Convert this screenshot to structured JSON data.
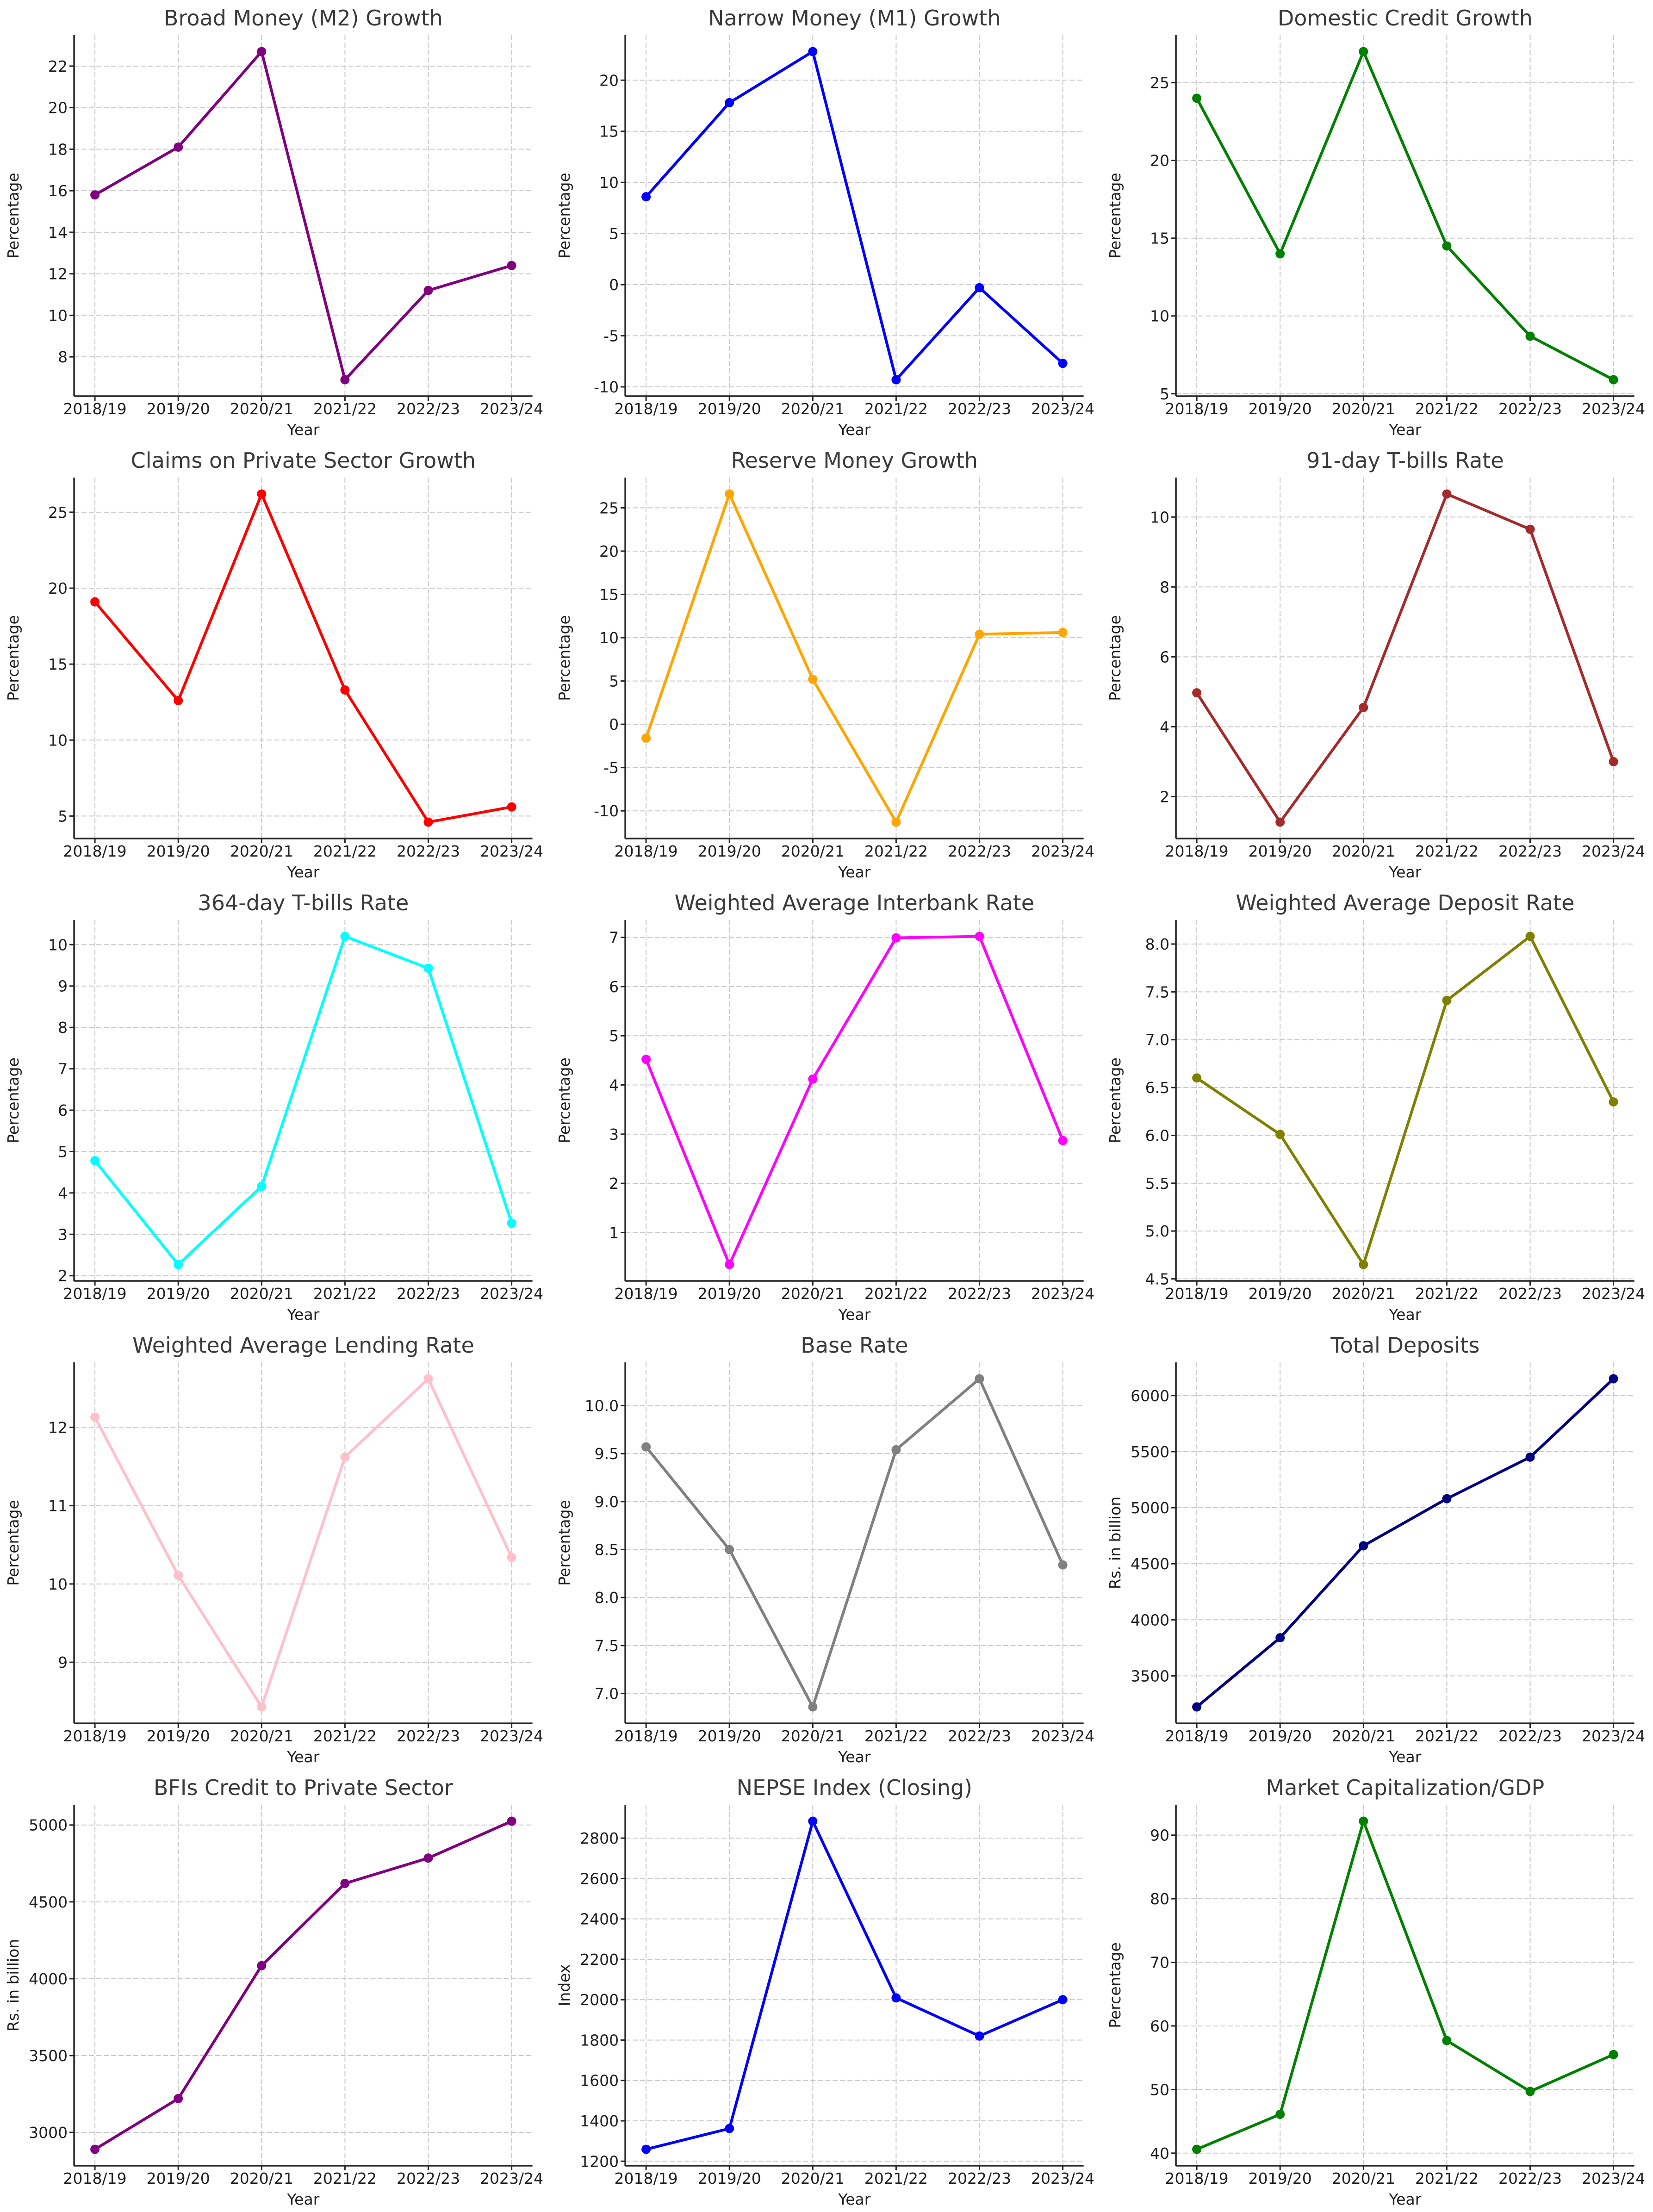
{
  "page": {
    "background": "#ffffff",
    "grid_rows": 5,
    "grid_cols": 3
  },
  "chart_data": {
    "layout": {
      "rows": 5,
      "cols": 3,
      "grid": true,
      "grid_style": "dashed",
      "legend": "none",
      "marker": "circle"
    },
    "xlabel": "Year",
    "categories": [
      "2018/19",
      "2019/20",
      "2020/21",
      "2021/22",
      "2022/23",
      "2023/24"
    ],
    "charts": [
      {
        "type": "line",
        "title": "Broad Money (M2) Growth",
        "ylabel": "Percentage",
        "color": "#800080",
        "values": [
          15.8,
          18.1,
          22.7,
          6.9,
          11.2,
          12.4
        ],
        "yticks": [
          8,
          10,
          12,
          14,
          16,
          18,
          20,
          22
        ]
      },
      {
        "type": "line",
        "title": "Narrow Money (M1) Growth",
        "ylabel": "Percentage",
        "color": "#0000FF",
        "values": [
          8.6,
          17.8,
          22.8,
          -9.3,
          -0.3,
          -7.7
        ],
        "yticks": [
          -10,
          -5,
          0,
          5,
          10,
          15,
          20
        ]
      },
      {
        "type": "line",
        "title": "Domestic Credit Growth",
        "ylabel": "Percentage",
        "color": "#008000",
        "values": [
          24.0,
          14.0,
          27.0,
          14.5,
          8.7,
          5.9
        ],
        "yticks": [
          5,
          10,
          15,
          20,
          25
        ]
      },
      {
        "type": "line",
        "title": "Claims on Private Sector Growth",
        "ylabel": "Percentage",
        "color": "#FF0000",
        "values": [
          19.1,
          12.6,
          26.2,
          13.3,
          4.6,
          5.6
        ],
        "yticks": [
          5,
          10,
          15,
          20,
          25
        ]
      },
      {
        "type": "line",
        "title": "Reserve Money Growth",
        "ylabel": "Percentage",
        "color": "#FFA500",
        "values": [
          -1.6,
          26.6,
          5.2,
          -11.3,
          10.4,
          10.6
        ],
        "yticks": [
          -10,
          -5,
          0,
          5,
          10,
          15,
          20,
          25
        ]
      },
      {
        "type": "line",
        "title": "91-day T-bills Rate",
        "ylabel": "Percentage",
        "color": "#A52A2A",
        "values": [
          4.97,
          1.27,
          4.55,
          10.66,
          9.65,
          3.0
        ],
        "yticks": [
          2,
          4,
          6,
          8,
          10
        ]
      },
      {
        "type": "line",
        "title": "364-day T-bills Rate",
        "ylabel": "Percentage",
        "color": "#00FFFF",
        "values": [
          4.78,
          2.27,
          4.16,
          10.2,
          9.43,
          3.27
        ],
        "yticks": [
          2,
          3,
          4,
          5,
          6,
          7,
          8,
          9,
          10
        ]
      },
      {
        "type": "line",
        "title": "Weighted Average Interbank Rate",
        "ylabel": "Percentage",
        "color": "#FF00FF",
        "values": [
          4.52,
          0.35,
          4.12,
          6.99,
          7.02,
          2.87
        ],
        "yticks": [
          1,
          2,
          3,
          4,
          5,
          6,
          7
        ]
      },
      {
        "type": "line",
        "title": "Weighted Average Deposit Rate",
        "ylabel": "Percentage",
        "color": "#808000",
        "values": [
          6.6,
          6.01,
          4.65,
          7.41,
          8.08,
          6.35
        ],
        "yticks": [
          4.5,
          5.0,
          5.5,
          6.0,
          6.5,
          7.0,
          7.5,
          8.0
        ]
      },
      {
        "type": "line",
        "title": "Weighted Average Lending Rate",
        "ylabel": "Percentage",
        "color": "#FFC0CB",
        "values": [
          12.13,
          10.11,
          8.43,
          11.62,
          12.62,
          10.34
        ],
        "yticks": [
          9,
          10,
          11,
          12
        ]
      },
      {
        "type": "line",
        "title": "Base Rate",
        "ylabel": "Percentage",
        "color": "#808080",
        "values": [
          9.57,
          8.5,
          6.86,
          9.54,
          10.28,
          8.34
        ],
        "yticks": [
          7.0,
          7.5,
          8.0,
          8.5,
          9.0,
          9.5,
          10.0
        ]
      },
      {
        "type": "line",
        "title": "Total Deposits",
        "ylabel": "Rs. in billion",
        "color": "#000080",
        "values": [
          3223,
          3840,
          4660,
          5080,
          5451,
          6150
        ],
        "yticks": [
          3500,
          4000,
          4500,
          5000,
          5500,
          6000
        ]
      },
      {
        "type": "line",
        "title": "BFIs Credit to Private Sector",
        "ylabel": "Rs. in billion",
        "color": "#800080",
        "values": [
          2890,
          3220,
          4085,
          4620,
          4785,
          5025
        ],
        "yticks": [
          3000,
          3500,
          4000,
          4500,
          5000
        ]
      },
      {
        "type": "line",
        "title": "NEPSE Index (Closing)",
        "ylabel": "Index",
        "color": "#0000FF",
        "values": [
          1259,
          1362,
          2884,
          2009,
          1820,
          2000
        ],
        "yticks": [
          1200,
          1400,
          1600,
          1800,
          2000,
          2200,
          2400,
          2600,
          2800
        ]
      },
      {
        "type": "line",
        "title": "Market Capitalization/GDP",
        "ylabel": "Percentage",
        "color": "#008000",
        "values": [
          40.6,
          46.1,
          92.2,
          57.7,
          49.7,
          55.5
        ],
        "yticks": [
          40,
          50,
          60,
          70,
          80,
          90
        ]
      }
    ]
  }
}
